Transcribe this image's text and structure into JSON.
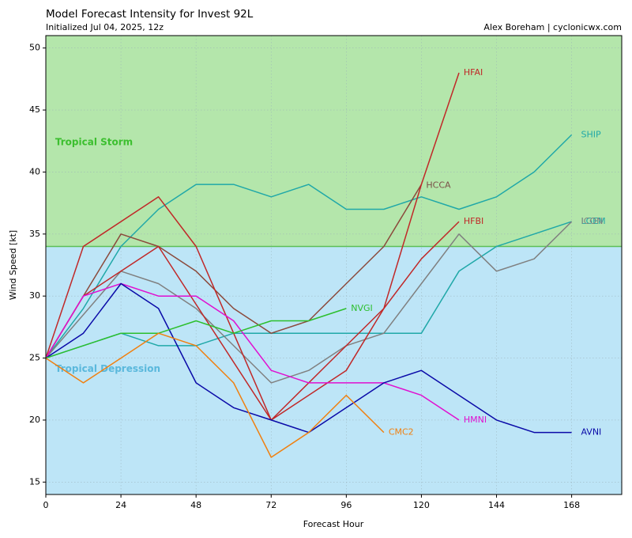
{
  "header": {
    "title": "Model Forecast Intensity for Invest 92L",
    "subtitle": "Initialized Jul 04, 2025, 12z",
    "credit": "Alex Boreham | cyclonicwx.com"
  },
  "chart_data": {
    "type": "line",
    "xlabel": "Forecast Hour",
    "ylabel": "Wind Speed [kt]",
    "xlim": [
      0,
      184
    ],
    "ylim": [
      14,
      51
    ],
    "xticks": [
      0,
      24,
      48,
      72,
      96,
      120,
      144,
      168
    ],
    "yticks": [
      15,
      20,
      25,
      30,
      35,
      40,
      45,
      50
    ],
    "grid": true,
    "zones": [
      {
        "label": "Tropical Storm",
        "from": 34,
        "to": 51,
        "fill": "#b4e6ab",
        "text_color": "#3cbf2f",
        "label_x": 3,
        "label_y": 42.4
      },
      {
        "label": "Tropical Depression",
        "from": 14,
        "to": 34,
        "fill": "#bde5f7",
        "text_color": "#5ab8dc",
        "label_x": 3,
        "label_y": 24.1
      }
    ],
    "threshold_line": {
      "value": 34,
      "color": "#5cbf57"
    },
    "series": [
      {
        "name": "SHIP",
        "color": "#20a8a8",
        "x": [
          0,
          12,
          24,
          36,
          48,
          60,
          72,
          84,
          96,
          108,
          120,
          132,
          144,
          156,
          168
        ],
        "y": [
          25,
          29,
          34,
          37,
          39,
          39,
          38,
          39,
          37,
          37,
          38,
          37,
          38,
          40,
          43
        ]
      },
      {
        "name": "LGEM",
        "color": "#20a8a8",
        "x": [
          0,
          24,
          36,
          48,
          60,
          72,
          84,
          96,
          108,
          120,
          132,
          144,
          156,
          168
        ],
        "y": [
          25,
          27,
          26,
          26,
          27,
          27,
          27,
          27,
          27,
          27,
          32,
          34,
          35,
          36
        ]
      },
      {
        "name": "ICON",
        "color": "#808080",
        "x": [
          0,
          24,
          36,
          48,
          60,
          72,
          84,
          96,
          108,
          120,
          132,
          144,
          156,
          168
        ],
        "y": [
          25,
          32,
          31,
          29,
          26,
          23,
          24,
          26,
          27,
          31,
          35,
          32,
          33,
          36
        ]
      },
      {
        "name": "HCCA",
        "color": "#8b4a3c",
        "x": [
          0,
          24,
          36,
          48,
          60,
          72,
          84,
          96,
          108,
          120
        ],
        "y": [
          25,
          35,
          34,
          32,
          29,
          27,
          28,
          31,
          34,
          39
        ]
      },
      {
        "name": "HFAI",
        "color": "#c02828",
        "x": [
          0,
          12,
          36,
          48,
          72,
          96,
          108,
          120,
          132
        ],
        "y": [
          25,
          34,
          38,
          34,
          20,
          24,
          29,
          39,
          48
        ]
      },
      {
        "name": "HFBI",
        "color": "#c02828",
        "x": [
          0,
          12,
          24,
          36,
          72,
          96,
          108,
          120,
          132
        ],
        "y": [
          25,
          30,
          32,
          34,
          20,
          26,
          29,
          33,
          36
        ]
      },
      {
        "name": "HMNI",
        "color": "#e010d0",
        "x": [
          0,
          12,
          24,
          36,
          48,
          60,
          72,
          84,
          96,
          108,
          120,
          132
        ],
        "y": [
          25,
          30,
          31,
          30,
          30,
          28,
          24,
          23,
          23,
          23,
          22,
          20
        ]
      },
      {
        "name": "AVNI",
        "color": "#0a0aa8",
        "x": [
          0,
          12,
          24,
          36,
          48,
          60,
          72,
          84,
          96,
          108,
          120,
          132,
          144,
          156,
          168
        ],
        "y": [
          25,
          27,
          31,
          29,
          23,
          21,
          20,
          19,
          21,
          23,
          24,
          22,
          20,
          19,
          19
        ]
      },
      {
        "name": "NVGI",
        "color": "#2cbf2c",
        "x": [
          0,
          24,
          36,
          48,
          60,
          72,
          84,
          96
        ],
        "y": [
          25,
          27,
          27,
          28,
          27,
          28,
          28,
          29
        ]
      },
      {
        "name": "CMC2",
        "color": "#f08010",
        "x": [
          0,
          12,
          24,
          36,
          48,
          60,
          72,
          84,
          96,
          108
        ],
        "y": [
          25,
          23,
          25,
          27,
          26,
          23,
          17,
          19,
          22,
          19
        ]
      }
    ],
    "labels": [
      {
        "text": "SHIP",
        "x": 171,
        "y": 43,
        "color": "#20a8a8"
      },
      {
        "text": "LGEM",
        "x": 171,
        "y": 36,
        "color": "#20a8a8"
      },
      {
        "text": "ICON",
        "x": 171,
        "y": 36,
        "color": "#808080"
      },
      {
        "text": "HCCA",
        "x": 121.5,
        "y": 38.9,
        "color": "#7a5048"
      },
      {
        "text": "HFAI",
        "x": 133.5,
        "y": 48,
        "color": "#c02828"
      },
      {
        "text": "HFBI",
        "x": 133.5,
        "y": 36,
        "color": "#c02828"
      },
      {
        "text": "NVGI",
        "x": 97.5,
        "y": 29,
        "color": "#2cbf2c"
      },
      {
        "text": "HMNI",
        "x": 133.5,
        "y": 20,
        "color": "#e010d0"
      },
      {
        "text": "AVNI",
        "x": 171,
        "y": 19,
        "color": "#0a0aa8"
      },
      {
        "text": "CMC2",
        "x": 109.5,
        "y": 19,
        "color": "#f08010"
      }
    ]
  }
}
